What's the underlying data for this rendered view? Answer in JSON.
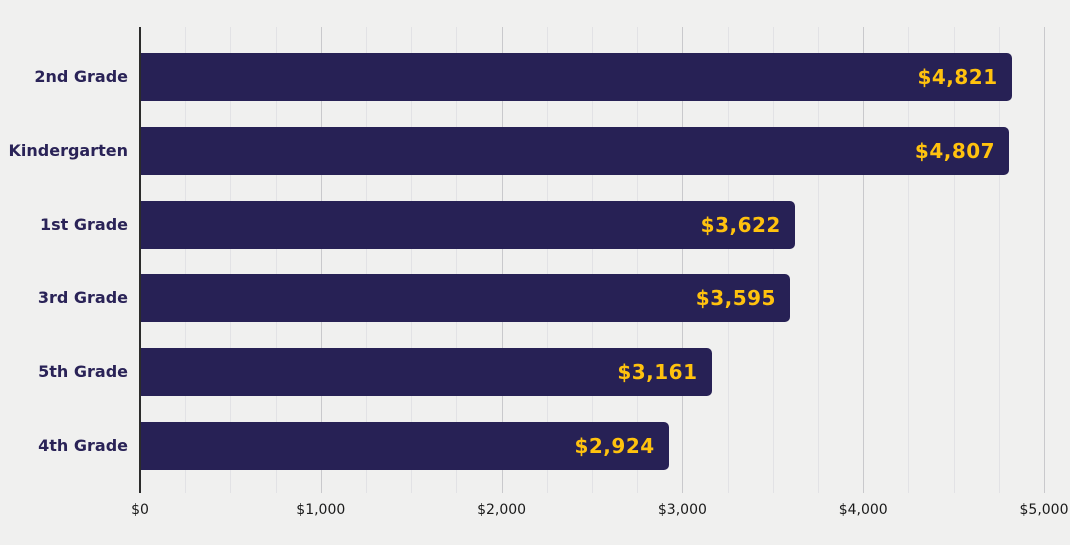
{
  "chart_data": {
    "type": "bar",
    "orientation": "horizontal",
    "title": "",
    "xlabel": "",
    "ylabel": "",
    "categories": [
      "2nd Grade",
      "Kindergarten",
      "1st Grade",
      "3rd Grade",
      "5th Grade",
      "4th Grade"
    ],
    "values": [
      4821,
      4807,
      3622,
      3595,
      3161,
      2924
    ],
    "value_labels": [
      "$4,821",
      "$4,807",
      "$3,622",
      "$3,595",
      "$3,161",
      "$2,924"
    ],
    "xlim": [
      0,
      5000
    ],
    "x_ticks": [
      {
        "value": 0,
        "label": "$0"
      },
      {
        "value": 1000,
        "label": "$1,000"
      },
      {
        "value": 2000,
        "label": "$2,000"
      },
      {
        "value": 3000,
        "label": "$3,000"
      },
      {
        "value": 4000,
        "label": "$4,000"
      },
      {
        "value": 5000,
        "label": "$5,000"
      }
    ],
    "minor_grid_step": 250,
    "major_grid_step": 1000,
    "grid": true,
    "legend_position": "none",
    "colors": {
      "background": "#f0f0ef",
      "bar": "#272155",
      "value_label": "#ffc20e",
      "category_label": "#2a2357",
      "axis_line": "#2b2b2b",
      "tick_label": "#1a1a1a",
      "grid_minor": "#e2e2e5",
      "grid_major": "#c9c9cc"
    }
  }
}
